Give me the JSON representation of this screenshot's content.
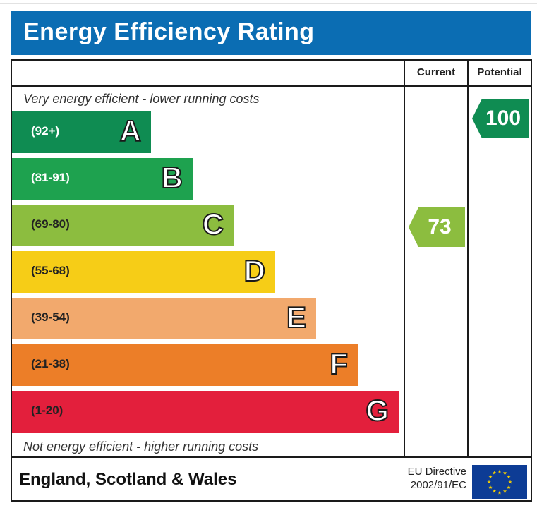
{
  "title": "Energy Efficiency Rating",
  "columns": {
    "current": "Current",
    "potential": "Potential"
  },
  "top_caption": "Very energy efficient - lower running costs",
  "bottom_caption": "Not energy efficient - higher running costs",
  "footer": {
    "region": "England, Scotland & Wales",
    "directive_line1": "EU Directive",
    "directive_line2": "2002/91/EC"
  },
  "colors": {
    "title_bg": "#0b6db3",
    "A": "#0f8c52",
    "B": "#1ea24f",
    "C": "#8cbd3f",
    "D": "#f6cd17",
    "E": "#f2a96d",
    "F": "#ec7e28",
    "G": "#e31f3c",
    "eu_blue": "#0d3c95",
    "eu_star": "#f7d000"
  },
  "chart_data": {
    "type": "bar",
    "categories": [
      "A",
      "B",
      "C",
      "D",
      "E",
      "F",
      "G"
    ],
    "bands": [
      {
        "letter": "A",
        "range": "(92+)",
        "min": 92,
        "max": 100
      },
      {
        "letter": "B",
        "range": "(81-91)",
        "min": 81,
        "max": 91
      },
      {
        "letter": "C",
        "range": "(69-80)",
        "min": 69,
        "max": 80
      },
      {
        "letter": "D",
        "range": "(55-68)",
        "min": 55,
        "max": 68
      },
      {
        "letter": "E",
        "range": "(39-54)",
        "min": 39,
        "max": 54
      },
      {
        "letter": "F",
        "range": "(21-38)",
        "min": 21,
        "max": 38
      },
      {
        "letter": "G",
        "range": "(1-20)",
        "min": 1,
        "max": 20
      }
    ],
    "current": {
      "value": 73,
      "band": "C"
    },
    "potential": {
      "value": 100,
      "band": "A"
    }
  }
}
